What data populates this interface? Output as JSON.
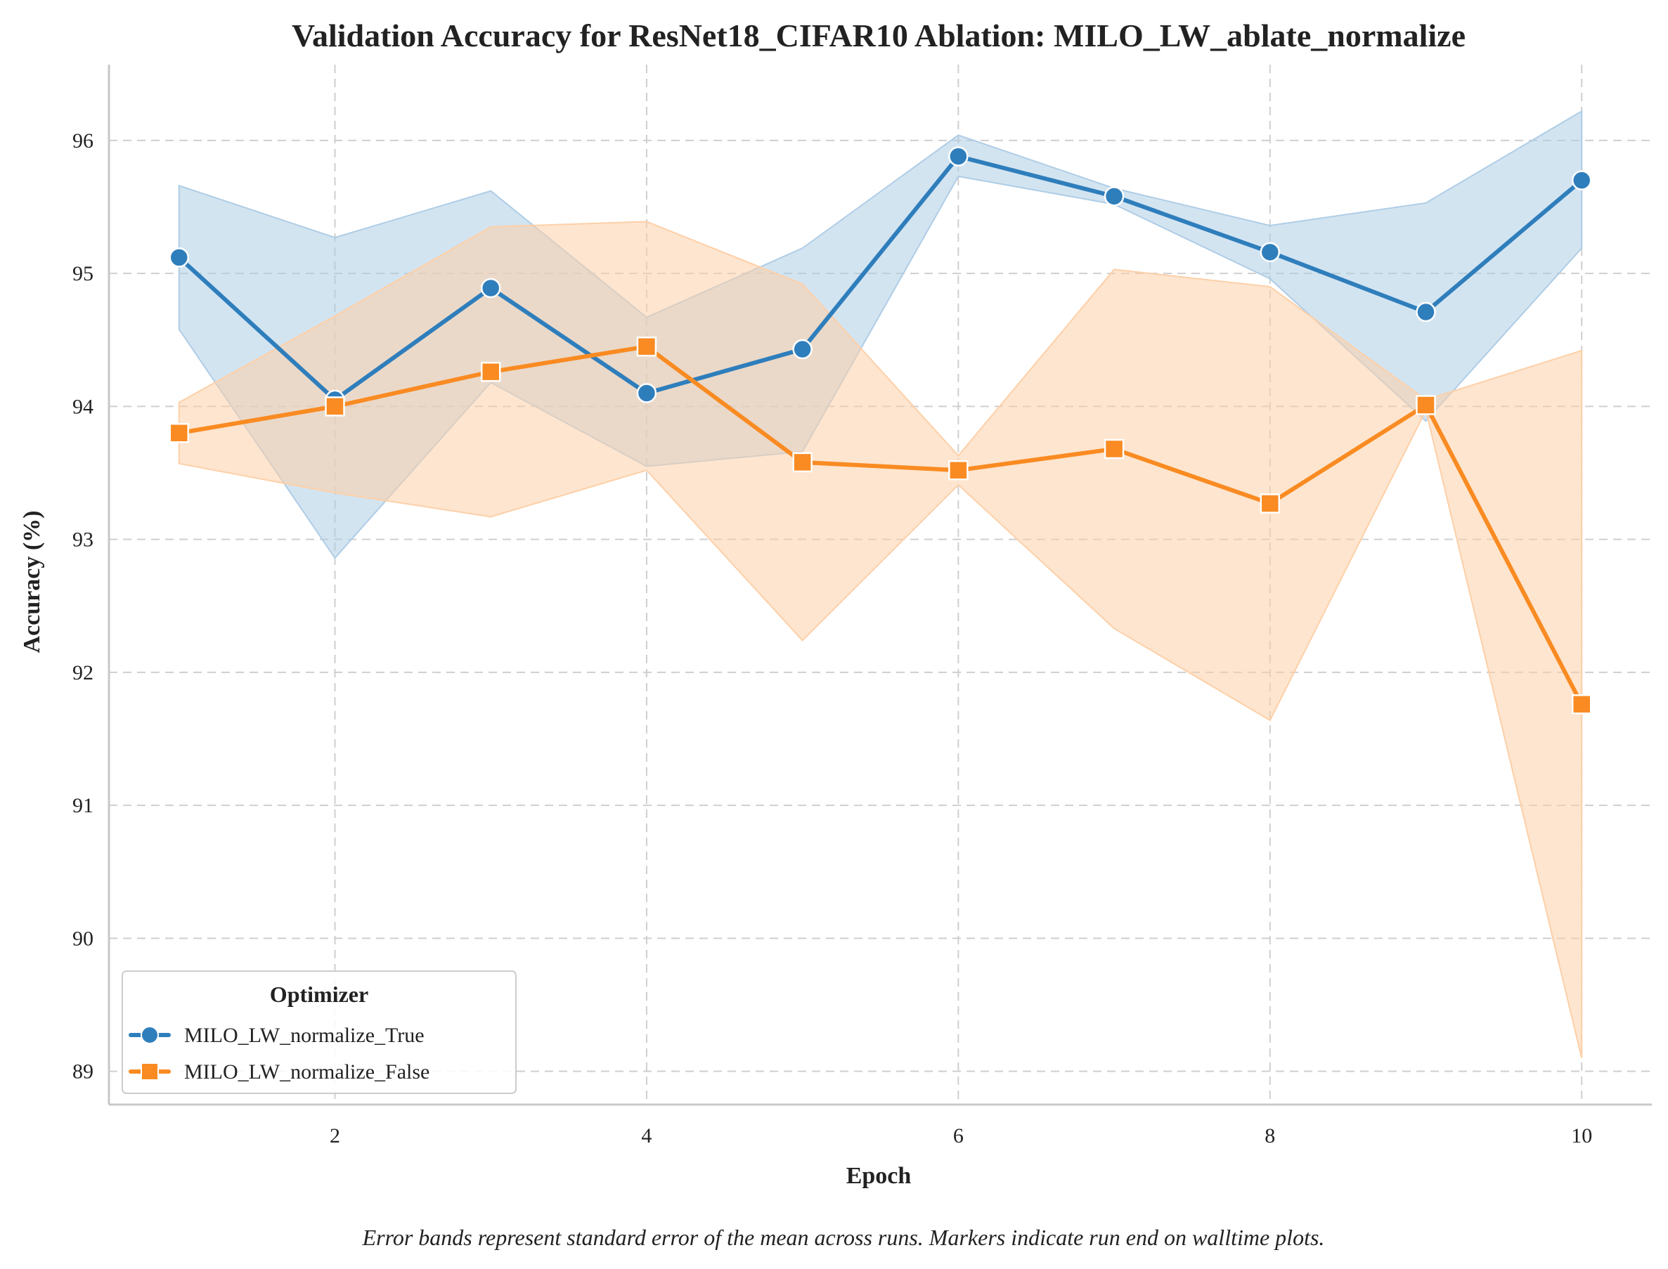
{
  "chart_data": {
    "type": "line",
    "title": "Validation Accuracy for ResNet18_CIFAR10 Ablation: MILO_LW_ablate_normalize",
    "xlabel": "Epoch",
    "ylabel": "Accuracy (%)",
    "x": [
      1,
      2,
      3,
      4,
      5,
      6,
      7,
      8,
      9,
      10
    ],
    "xlim": [
      0.55,
      10.45
    ],
    "ylim": [
      88.75,
      96.57
    ],
    "xticks": [
      2,
      4,
      6,
      8,
      10
    ],
    "yticks": [
      89,
      90,
      91,
      92,
      93,
      94,
      95,
      96
    ],
    "grid": true,
    "legend": {
      "title": "Optimizer",
      "placement": "lower-left"
    },
    "caption": "Error bands represent standard error of the mean across runs. Markers indicate run end on walltime plots.",
    "series": [
      {
        "name": "MILO_LW_normalize_True",
        "color": "#2f7ebc",
        "band_color": "#aecde6",
        "marker": "circle",
        "values": [
          95.12,
          94.05,
          94.89,
          94.1,
          94.43,
          95.88,
          95.58,
          95.16,
          94.71,
          95.7
        ],
        "lower": [
          94.58,
          92.86,
          94.18,
          93.55,
          93.66,
          95.73,
          95.52,
          94.96,
          93.89,
          95.19
        ],
        "upper": [
          95.66,
          95.27,
          95.62,
          94.67,
          95.19,
          96.04,
          95.64,
          95.36,
          95.53,
          96.22
        ]
      },
      {
        "name": "MILO_LW_normalize_False",
        "color": "#f98b22",
        "band_color": "#fdd0a8",
        "marker": "square",
        "values": [
          93.8,
          94.0,
          94.26,
          94.45,
          93.58,
          93.52,
          93.68,
          93.27,
          94.01,
          91.76
        ],
        "lower": [
          93.57,
          93.35,
          93.17,
          93.52,
          92.24,
          93.41,
          92.33,
          91.64,
          93.97,
          89.1
        ],
        "upper": [
          94.03,
          94.68,
          95.35,
          95.39,
          94.92,
          93.63,
          95.03,
          94.9,
          94.05,
          94.42
        ]
      }
    ]
  }
}
